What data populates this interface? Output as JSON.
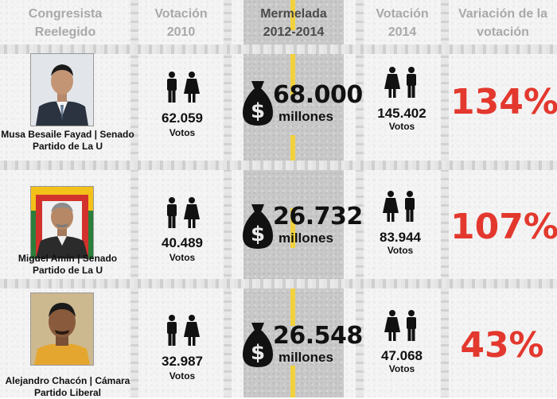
{
  "headers": {
    "congresista": [
      "Congresista",
      "Reelegido"
    ],
    "votacion_2010": [
      "Votación",
      "2010"
    ],
    "mermelada": [
      "Mermelada",
      "2012-2014"
    ],
    "votacion_2014": [
      "Votación",
      "2014"
    ],
    "variacion": [
      "Variación de la",
      "votación"
    ]
  },
  "rows": [
    {
      "name_line1": "Musa Besaile Fayad | Senado",
      "name_line2": "Partido de La U",
      "votes_2010": "62.059",
      "votes_2010_label": "Votos",
      "mermelada_amount": "68.000",
      "mermelada_unit": "millones",
      "votes_2014": "145.402",
      "votes_2014_label": "Votos",
      "variation": "134%"
    },
    {
      "name_line1": "Miguel Amín | Senado",
      "name_line2": "Partido de La U",
      "votes_2010": "40.489",
      "votes_2010_label": "Votos",
      "mermelada_amount": "26.732",
      "mermelada_unit": "millones",
      "votes_2014": "83.944",
      "votes_2014_label": "Votos",
      "variation": "107%"
    },
    {
      "name_line1": "Alejandro Chacón | Cámara",
      "name_line2": "Partido Liberal",
      "votes_2010": "32.987",
      "votes_2010_label": "Votos",
      "mermelada_amount": "26.548",
      "mermelada_unit": "millones",
      "votes_2014": "47.068",
      "votes_2014_label": "Votos",
      "variation": "43%"
    }
  ],
  "colors": {
    "variation_red": "#e3382e",
    "header_gray": "#a9a9a9",
    "road_gray": "#c9c9c9",
    "road_line_yellow": "#f1d23c"
  },
  "icons": {
    "voters": "man-and-woman-icon",
    "money": "money-bag-icon"
  }
}
